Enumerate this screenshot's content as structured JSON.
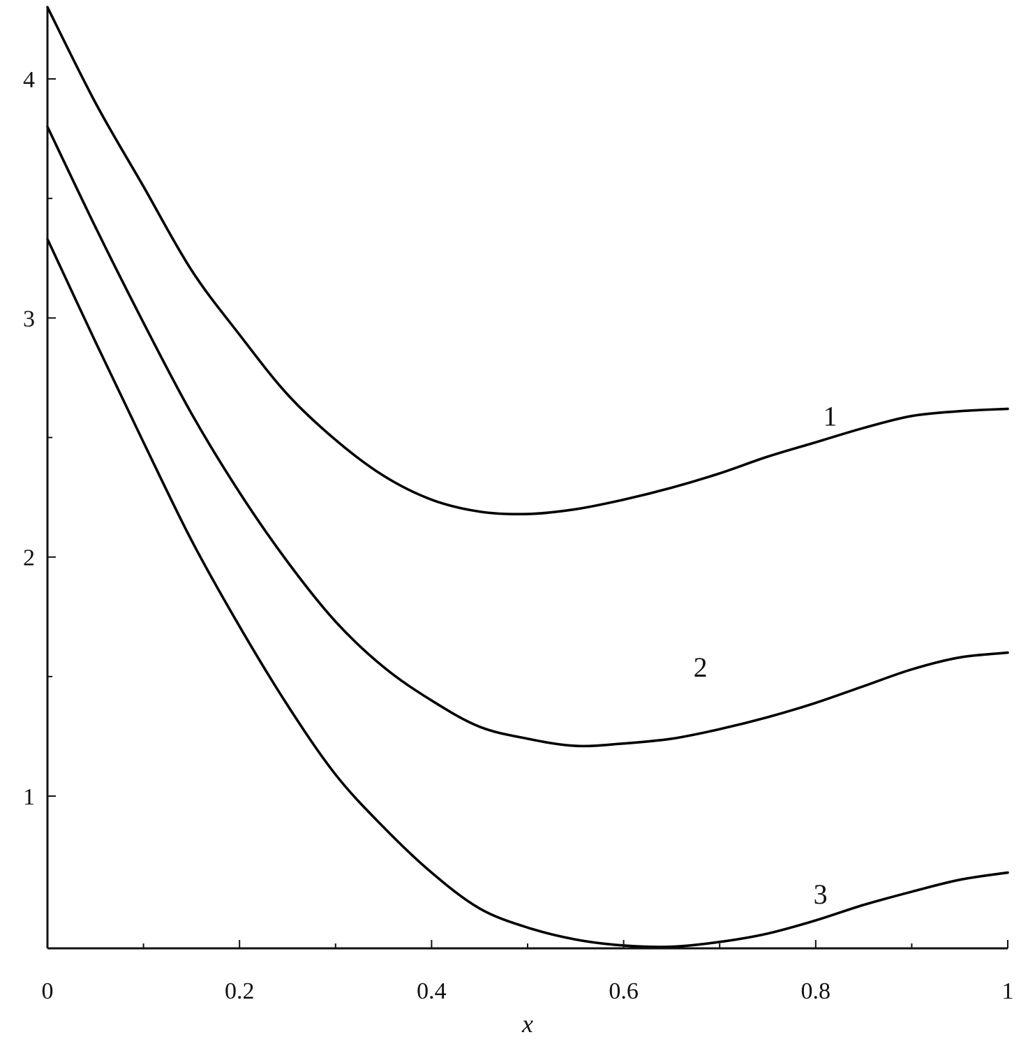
{
  "chart_data": {
    "type": "line",
    "title": "",
    "xlabel": "x",
    "ylabel": "",
    "xlim": [
      0,
      1
    ],
    "ylim": [
      0.65,
      4.3
    ],
    "x_ticks": [
      "0",
      "0.2",
      "0.4",
      "0.6",
      "0.8",
      "1"
    ],
    "x_tick_values": [
      0,
      0.2,
      0.4,
      0.6,
      0.8,
      1
    ],
    "x_minor_tick_values": [
      0.1,
      0.3,
      0.5,
      0.7,
      0.9
    ],
    "y_ticks": [
      "1",
      "2",
      "3",
      "4"
    ],
    "y_tick_values": [
      1,
      2,
      3,
      4
    ],
    "y_minor_tick_values": [
      1.5,
      2.5,
      3.5
    ],
    "grid": false,
    "series": [
      {
        "name": "1",
        "label_at": [
          0.815,
          2.55
        ],
        "x": [
          0,
          0.05,
          0.1,
          0.15,
          0.2,
          0.25,
          0.3,
          0.35,
          0.4,
          0.45,
          0.5,
          0.55,
          0.6,
          0.65,
          0.7,
          0.75,
          0.8,
          0.85,
          0.9,
          0.95,
          1.0
        ],
        "y": [
          4.3,
          3.9,
          3.55,
          3.2,
          2.93,
          2.68,
          2.49,
          2.34,
          2.24,
          2.19,
          2.18,
          2.2,
          2.24,
          2.29,
          2.35,
          2.42,
          2.48,
          2.54,
          2.59,
          2.61,
          2.62
        ]
      },
      {
        "name": "2",
        "label_at": [
          0.68,
          1.5
        ],
        "x": [
          0,
          0.05,
          0.1,
          0.15,
          0.2,
          0.25,
          0.3,
          0.35,
          0.4,
          0.45,
          0.5,
          0.55,
          0.6,
          0.65,
          0.7,
          0.75,
          0.8,
          0.85,
          0.9,
          0.95,
          1.0
        ],
        "y": [
          3.8,
          3.38,
          2.98,
          2.6,
          2.27,
          1.98,
          1.73,
          1.54,
          1.4,
          1.29,
          1.24,
          1.21,
          1.22,
          1.24,
          1.28,
          1.33,
          1.39,
          1.46,
          1.53,
          1.58,
          1.6
        ]
      },
      {
        "name": "3",
        "label_at": [
          0.805,
          0.55
        ],
        "x": [
          0,
          0.05,
          0.1,
          0.15,
          0.2,
          0.25,
          0.3,
          0.35,
          0.4,
          0.45,
          0.5,
          0.55,
          0.6,
          0.65,
          0.7,
          0.75,
          0.8,
          0.85,
          0.9,
          0.95,
          1.0
        ],
        "y": [
          3.33,
          2.9,
          2.48,
          2.07,
          1.71,
          1.38,
          1.09,
          0.87,
          0.68,
          0.53,
          0.45,
          0.4,
          0.375,
          0.37,
          0.39,
          0.425,
          0.48,
          0.545,
          0.6,
          0.65,
          0.68
        ]
      }
    ]
  }
}
